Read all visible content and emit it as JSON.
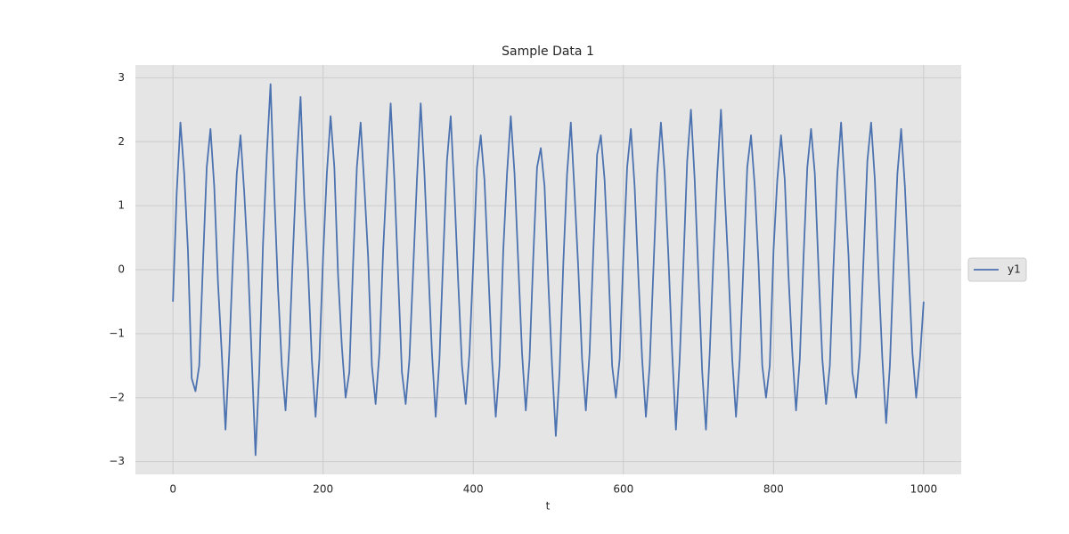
{
  "chart_data": {
    "type": "line",
    "title": "Sample Data 1",
    "x_label": "t",
    "x": [
      0,
      5,
      10,
      15,
      20,
      25,
      30,
      35,
      40,
      45,
      50,
      55,
      60,
      65,
      70,
      75,
      80,
      85,
      90,
      95,
      100,
      105,
      110,
      115,
      120,
      125,
      130,
      135,
      140,
      145,
      150,
      155,
      160,
      165,
      170,
      175,
      180,
      185,
      190,
      195,
      200,
      205,
      210,
      215,
      220,
      225,
      230,
      235,
      240,
      245,
      250,
      255,
      260,
      265,
      270,
      275,
      280,
      285,
      290,
      295,
      300,
      305,
      310,
      315,
      320,
      325,
      330,
      335,
      340,
      345,
      350,
      355,
      360,
      365,
      370,
      375,
      380,
      385,
      390,
      395,
      400,
      405,
      410,
      415,
      420,
      425,
      430,
      435,
      440,
      445,
      450,
      455,
      460,
      465,
      470,
      475,
      480,
      485,
      490,
      495,
      500,
      505,
      510,
      515,
      520,
      525,
      530,
      535,
      540,
      545,
      550,
      555,
      560,
      565,
      570,
      575,
      580,
      585,
      590,
      595,
      600,
      605,
      610,
      615,
      620,
      625,
      630,
      635,
      640,
      645,
      650,
      655,
      660,
      665,
      670,
      675,
      680,
      685,
      690,
      695,
      700,
      705,
      710,
      715,
      720,
      725,
      730,
      735,
      740,
      745,
      750,
      755,
      760,
      765,
      770,
      775,
      780,
      785,
      790,
      795,
      800,
      805,
      810,
      815,
      820,
      825,
      830,
      835,
      840,
      845,
      850,
      855,
      860,
      865,
      870,
      875,
      880,
      885,
      890,
      895,
      900,
      905,
      910,
      915,
      920,
      925,
      930,
      935,
      940,
      945,
      950,
      955,
      960,
      965,
      970,
      975,
      980,
      985,
      990,
      995,
      1000
    ],
    "series": [
      {
        "name": "y1",
        "color": "#4c72b0",
        "values": [
          -0.5,
          1.2,
          2.3,
          1.5,
          0.3,
          -1.7,
          -1.9,
          -1.5,
          0.1,
          1.6,
          2.2,
          1.3,
          -0.2,
          -1.3,
          -2.5,
          -1.3,
          0.2,
          1.5,
          2.1,
          1.2,
          0.1,
          -1.4,
          -2.9,
          -1.6,
          0.4,
          1.8,
          2.9,
          1.2,
          -0.3,
          -1.5,
          -2.2,
          -1.2,
          0.3,
          1.7,
          2.7,
          1.1,
          0.0,
          -1.4,
          -2.3,
          -1.4,
          0.2,
          1.5,
          2.4,
          1.6,
          -0.1,
          -1.2,
          -2.0,
          -1.6,
          0.1,
          1.6,
          2.3,
          1.3,
          0.2,
          -1.5,
          -2.1,
          -1.3,
          0.3,
          1.5,
          2.6,
          1.4,
          -0.1,
          -1.6,
          -2.1,
          -1.4,
          0.0,
          1.4,
          2.6,
          1.5,
          0.1,
          -1.3,
          -2.3,
          -1.4,
          0.2,
          1.7,
          2.4,
          1.2,
          -0.2,
          -1.5,
          -2.1,
          -1.3,
          0.1,
          1.6,
          2.1,
          1.4,
          0.0,
          -1.4,
          -2.3,
          -1.5,
          0.3,
          1.5,
          2.4,
          1.5,
          0.1,
          -1.3,
          -2.2,
          -1.4,
          0.2,
          1.6,
          1.9,
          1.3,
          -0.2,
          -1.5,
          -2.6,
          -1.6,
          0.1,
          1.5,
          2.3,
          1.2,
          0.0,
          -1.4,
          -2.2,
          -1.3,
          0.3,
          1.8,
          2.1,
          1.4,
          0.1,
          -1.5,
          -2.0,
          -1.4,
          0.2,
          1.6,
          2.2,
          1.3,
          -0.1,
          -1.4,
          -2.3,
          -1.5,
          0.0,
          1.5,
          2.3,
          1.5,
          0.2,
          -1.3,
          -2.5,
          -1.4,
          0.1,
          1.7,
          2.5,
          1.4,
          -0.1,
          -1.6,
          -2.5,
          -1.3,
          0.2,
          1.5,
          2.5,
          1.2,
          0.0,
          -1.4,
          -2.3,
          -1.4,
          0.1,
          1.6,
          2.1,
          1.3,
          0.1,
          -1.5,
          -2.0,
          -1.5,
          0.3,
          1.4,
          2.1,
          1.4,
          -0.1,
          -1.3,
          -2.2,
          -1.4,
          0.2,
          1.6,
          2.2,
          1.5,
          0.0,
          -1.4,
          -2.1,
          -1.5,
          0.1,
          1.5,
          2.3,
          1.3,
          0.2,
          -1.6,
          -2.0,
          -1.3,
          0.2,
          1.7,
          2.3,
          1.4,
          -0.1,
          -1.4,
          -2.4,
          -1.5,
          0.1,
          1.5,
          2.2,
          1.3,
          0.0,
          -1.3,
          -2.0,
          -1.4,
          -0.5
        ]
      }
    ],
    "xlim": [
      -50,
      1050
    ],
    "ylim": [
      -3.2,
      3.2
    ],
    "xticks": [
      0,
      200,
      400,
      600,
      800,
      1000
    ],
    "yticks": [
      {
        "value": -3,
        "label": "−3"
      },
      {
        "value": -2,
        "label": "−2"
      },
      {
        "value": -1,
        "label": "−1"
      },
      0,
      1,
      2,
      3
    ],
    "grid": true,
    "legend": "right"
  }
}
